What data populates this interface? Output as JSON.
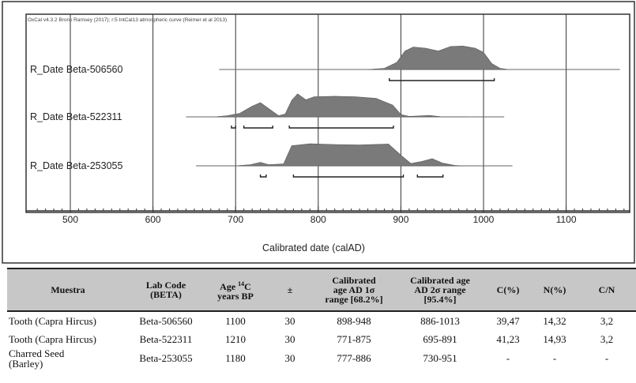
{
  "chart_data": {
    "type": "area",
    "credit": "OxCal v4.3.2 Bronk Ramsey (2017); r:5 IntCal13 atmospheric curve (Reimer et al 2013)",
    "xlabel": "Calibrated date (calAD)",
    "xlim": [
      455,
      1175
    ],
    "xticks": [
      500,
      600,
      700,
      800,
      900,
      1000,
      1100
    ],
    "grid": true,
    "series": [
      {
        "name": "R_Date Beta-506560",
        "range_line": [
          680,
          1165
        ],
        "density": [
          [
            860,
            0
          ],
          [
            880,
            0.05
          ],
          [
            895,
            0.3
          ],
          [
            905,
            0.78
          ],
          [
            915,
            0.95
          ],
          [
            930,
            0.9
          ],
          [
            945,
            0.78
          ],
          [
            960,
            0.97
          ],
          [
            975,
            0.99
          ],
          [
            990,
            0.9
          ],
          [
            1000,
            0.72
          ],
          [
            1010,
            0.25
          ],
          [
            1020,
            0.05
          ],
          [
            1030,
            0
          ]
        ],
        "range_1sigma": [
          [
            898,
            948
          ]
        ],
        "range_2sigma": [
          [
            886,
            1013
          ]
        ]
      },
      {
        "name": "R_Date Beta-522311",
        "range_line": [
          640,
          1025
        ],
        "density": [
          [
            675,
            0
          ],
          [
            690,
            0.05
          ],
          [
            705,
            0.15
          ],
          [
            720,
            0.45
          ],
          [
            730,
            0.6
          ],
          [
            740,
            0.35
          ],
          [
            752,
            0.05
          ],
          [
            760,
            0.12
          ],
          [
            768,
            0.7
          ],
          [
            775,
            0.97
          ],
          [
            785,
            0.72
          ],
          [
            795,
            0.85
          ],
          [
            820,
            0.87
          ],
          [
            845,
            0.85
          ],
          [
            870,
            0.78
          ],
          [
            890,
            0.5
          ],
          [
            900,
            0.1
          ],
          [
            910,
            0.02
          ],
          [
            935,
            0.06
          ],
          [
            950,
            0
          ],
          [
            980,
            0
          ]
        ],
        "range_1sigma": [
          [
            771,
            875
          ]
        ],
        "range_2sigma": [
          [
            695,
            700
          ],
          [
            710,
            745
          ],
          [
            765,
            891
          ]
        ]
      },
      {
        "name": "R_Date Beta-253055",
        "range_line": [
          652,
          1035
        ],
        "density": [
          [
            700,
            0
          ],
          [
            718,
            0.05
          ],
          [
            730,
            0.15
          ],
          [
            740,
            0.05
          ],
          [
            758,
            0.08
          ],
          [
            768,
            0.85
          ],
          [
            790,
            0.93
          ],
          [
            820,
            0.9
          ],
          [
            850,
            0.88
          ],
          [
            885,
            0.92
          ],
          [
            900,
            0.45
          ],
          [
            912,
            0.1
          ],
          [
            925,
            0.18
          ],
          [
            938,
            0.3
          ],
          [
            950,
            0.12
          ],
          [
            965,
            0.02
          ],
          [
            975,
            0
          ]
        ],
        "range_1sigma": [
          [
            777,
            886
          ]
        ],
        "range_2sigma": [
          [
            730,
            737
          ],
          [
            770,
            903
          ],
          [
            920,
            951
          ]
        ]
      }
    ]
  },
  "table": {
    "headers": {
      "muestra": "Muestra",
      "lab_code_1": "Lab Code",
      "lab_code_2": "(BETA)",
      "age_1_pre": "Age ",
      "age_1_sup": "14",
      "age_1_post": "C",
      "age_2": "years BP",
      "pm": "±",
      "cal1_1": "Calibrated",
      "cal1_2": "age AD 1σ",
      "cal1_3": "range [68.2%]",
      "cal2_1": "Calibrated age",
      "cal2_2": "AD 2σ range",
      "cal2_3": "[95.4%]",
      "c": "C(%)",
      "n": "N(%)",
      "cn": "C/N"
    },
    "rows": [
      {
        "muestra": "Tooth (Capra Hircus)",
        "lab_code": "Beta-506560",
        "age": "1100",
        "pm": "30",
        "cal1": "898-948",
        "cal2": "886-1013",
        "c": "39,47",
        "n": "14,32",
        "cn": "3,2"
      },
      {
        "muestra": "Tooth (Capra Hircus)",
        "lab_code": "Beta-522311",
        "age": "1210",
        "pm": "30",
        "cal1": "771-875",
        "cal2": "695-891",
        "c": "41,23",
        "n": "14,93",
        "cn": "3,2"
      },
      {
        "muestra_1": "Charred Seed",
        "muestra_2": "(Barley)",
        "lab_code": "Beta-253055",
        "age": "1180",
        "pm": "30",
        "cal1": "777-886",
        "cal2": "730-951",
        "c": "-",
        "n": "-",
        "cn": "-"
      }
    ]
  }
}
